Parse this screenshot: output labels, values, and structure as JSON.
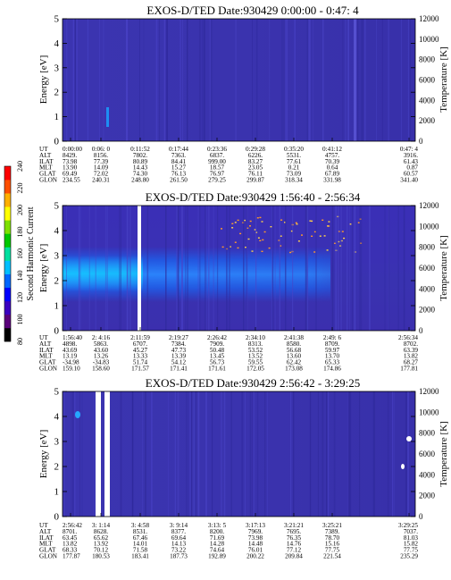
{
  "colorbar": {
    "label": "Second Harmonic Current",
    "ticks": [
      "80",
      "100",
      "120",
      "140",
      "160",
      "180",
      "200",
      "220",
      "240"
    ],
    "colors": [
      "#000000",
      "#5a007a",
      "#3a00c0",
      "#0000ff",
      "#0066ff",
      "#00bfff",
      "#00e0a0",
      "#00c800",
      "#7ee000",
      "#ffff00",
      "#ffb000",
      "#ff5000",
      "#ff0000"
    ]
  },
  "row_labels": [
    "UT",
    "ALT",
    "ILAT",
    "MLT",
    "GLAT",
    "GLON"
  ],
  "chart_data": [
    {
      "type": "heatmap",
      "title": "EXOS-D/TED   Date:930429   0:00:00 - 0:47: 4",
      "ylabel": "Energy [eV]",
      "y2label": "Temperature [K]",
      "ylim": [
        0,
        5
      ],
      "y2lim": [
        0,
        12000
      ],
      "yticks": [
        "0",
        "1",
        "2",
        "3",
        "4",
        "5"
      ],
      "y2ticks": [
        "0",
        "2000",
        "4000",
        "6000",
        "8000",
        "10000",
        "12000"
      ],
      "table": [
        [
          "0:00:00",
          "0:06: 0",
          "0:11:52",
          "0:17:44",
          "0:23:36",
          "0:29:28",
          "0:35:20",
          "0:41:12",
          "0:47: 4"
        ],
        [
          "8429.",
          "8156.",
          "7802.",
          "7363.",
          "6837.",
          "6226.",
          "5531.",
          "4757.",
          "3916."
        ],
        [
          "73.98",
          "77.39",
          "80.89",
          "84.41",
          "999.00",
          "83.27",
          "77.61",
          "70.39",
          "61.43"
        ],
        [
          "13.90",
          "14.09",
          "14.43",
          "15.27",
          "18.57",
          "23.05",
          "0.21",
          "0.64",
          "0.87"
        ],
        [
          "69.49",
          "72.02",
          "74.30",
          "76.13",
          "76.97",
          "76.11",
          "73.09",
          "67.89",
          "60.57"
        ],
        [
          "234.55",
          "240.31",
          "248.80",
          "261.50",
          "279.25",
          "299.87",
          "318.34",
          "331.98",
          "341.40"
        ]
      ]
    },
    {
      "type": "heatmap",
      "title": "EXOS-D/TED   Date:930429   1:56:40 - 2:56:34",
      "ylabel": "Energy [eV]",
      "y2label": "Temperature [K]",
      "ylim": [
        0,
        5
      ],
      "y2lim": [
        0,
        12000
      ],
      "yticks": [
        "0",
        "1",
        "2",
        "3",
        "4",
        "5"
      ],
      "y2ticks": [
        "0",
        "2000",
        "4000",
        "6000",
        "8000",
        "10000",
        "12000"
      ],
      "table": [
        [
          "1:56:40",
          "2: 4:16",
          "2:11:59",
          "2:19:27",
          "2:26:42",
          "2:34:10",
          "2:41:38",
          "2:49: 6",
          "2:56:34"
        ],
        [
          "4898.",
          "5863.",
          "6707.",
          "7384.",
          "7909.",
          "8313.",
          "8580.",
          "8709.",
          "8702."
        ],
        [
          "43.69",
          "43.60",
          "45.27",
          "47.73",
          "50.48",
          "53.52",
          "56.68",
          "59.97",
          "63.39"
        ],
        [
          "13.19",
          "13.26",
          "13.33",
          "13.39",
          "13.45",
          "13.52",
          "13.60",
          "13.70",
          "13.82"
        ],
        [
          "-34.98",
          "-34.83",
          "51.74",
          "54.12",
          "56.73",
          "59.55",
          "62.42",
          "65.33",
          "68.27"
        ],
        [
          "159.10",
          "158.60",
          "171.57",
          "171.41",
          "171.61",
          "172.05",
          "173.08",
          "174.86",
          "177.81"
        ]
      ]
    },
    {
      "type": "heatmap",
      "title": "EXOS-D/TED   Date:930429   2:56:42 - 3:29:25",
      "ylabel": "Energy [eV]",
      "y2label": "Temperature [K]",
      "ylim": [
        0,
        5
      ],
      "y2lim": [
        0,
        12000
      ],
      "yticks": [
        "0",
        "1",
        "2",
        "3",
        "4",
        "5"
      ],
      "y2ticks": [
        "0",
        "2000",
        "4000",
        "6000",
        "8000",
        "10000",
        "12000"
      ],
      "table": [
        [
          "2:56:42",
          "3: 1:14",
          "3: 4:58",
          "3: 9:14",
          "3:13: 5",
          "3:17:13",
          "3:21:21",
          "3:25:21",
          "3:29:25"
        ],
        [
          "8701.",
          "8628.",
          "8531.",
          "8377.",
          "8200.",
          "7969.",
          "7695.",
          "7389.",
          "7037."
        ],
        [
          "63.45",
          "65.62",
          "67.46",
          "69.64",
          "71.69",
          "73.98",
          "76.35",
          "78.70",
          "81.03"
        ],
        [
          "13.82",
          "13.92",
          "14.01",
          "14.13",
          "14.28",
          "14.48",
          "14.76",
          "15.16",
          "15.82"
        ],
        [
          "68.33",
          "70.12",
          "71.58",
          "73.22",
          "74.64",
          "76.01",
          "77.12",
          "77.75",
          "77.75"
        ],
        [
          "177.87",
          "180.53",
          "183.41",
          "187.73",
          "192.89",
          "200.22",
          "209.84",
          "221.54",
          "235.29"
        ]
      ]
    }
  ]
}
